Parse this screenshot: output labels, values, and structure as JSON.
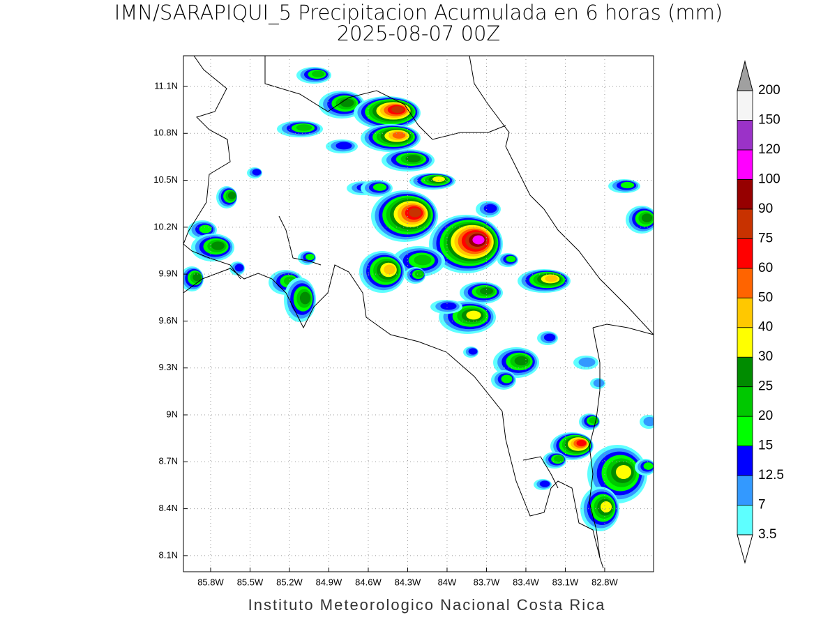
{
  "title": "IMN/SARAPIQUI_5 Precipitacion Acumulada en 6 horas (mm)",
  "subtitle": "2025-08-07 00Z",
  "footer": "Instituto Meteorologico Nacional Costa Rica",
  "map": {
    "xlim": [
      -86.007,
      -82.428
    ],
    "ylim": [
      7.997,
      11.296
    ],
    "grid": true,
    "xticks": [
      {
        "value": -85.8,
        "label": "85.8W"
      },
      {
        "value": -85.5,
        "label": "85.5W"
      },
      {
        "value": -85.2,
        "label": "85.2W"
      },
      {
        "value": -84.9,
        "label": "84.9W"
      },
      {
        "value": -84.6,
        "label": "84.6W"
      },
      {
        "value": -84.3,
        "label": "84.3W"
      },
      {
        "value": -84.0,
        "label": "84W"
      },
      {
        "value": -83.7,
        "label": "83.7W"
      },
      {
        "value": -83.4,
        "label": "83.4W"
      },
      {
        "value": -83.1,
        "label": "83.1W"
      },
      {
        "value": -82.8,
        "label": "82.8W"
      }
    ],
    "yticks": [
      {
        "value": 8.1,
        "label": "8.1N"
      },
      {
        "value": 8.4,
        "label": "8.4N"
      },
      {
        "value": 8.7,
        "label": "8.7N"
      },
      {
        "value": 9.0,
        "label": "9N"
      },
      {
        "value": 9.3,
        "label": "9.3N"
      },
      {
        "value": 9.6,
        "label": "9.6N"
      },
      {
        "value": 9.9,
        "label": "9.9N"
      },
      {
        "value": 10.2,
        "label": "10.2N"
      },
      {
        "value": 10.5,
        "label": "10.5N"
      },
      {
        "value": 10.8,
        "label": "10.8N"
      },
      {
        "value": 11.1,
        "label": "11.1N"
      }
    ]
  },
  "colorbar": {
    "levels": [
      3.5,
      7,
      12.5,
      15,
      20,
      25,
      30,
      40,
      50,
      60,
      75,
      90,
      100,
      120,
      150,
      200
    ],
    "colors": [
      "#5effff",
      "#3399ff",
      "#0000ff",
      "#00ff00",
      "#00c800",
      "#008c00",
      "#ffff00",
      "#ffc800",
      "#ff6400",
      "#ff0000",
      "#c83200",
      "#960000",
      "#ff00ff",
      "#9b32c8",
      "#f5f5f5"
    ],
    "under_color": "#ffffff",
    "over_color": "#a0a0a0"
  }
}
